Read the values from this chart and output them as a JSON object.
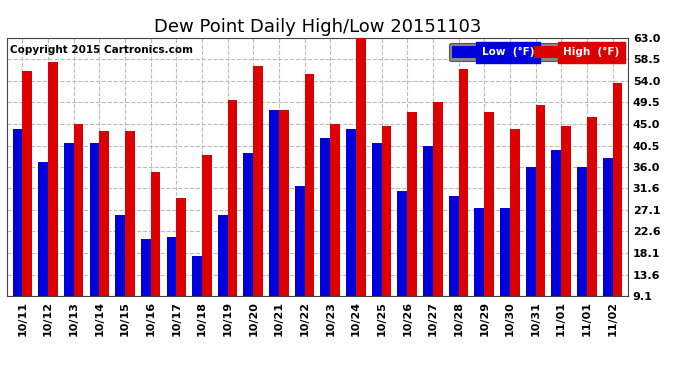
{
  "title": "Dew Point Daily High/Low 20151103",
  "copyright": "Copyright 2015 Cartronics.com",
  "categories": [
    "10/11",
    "10/12",
    "10/13",
    "10/14",
    "10/15",
    "10/16",
    "10/17",
    "10/18",
    "10/19",
    "10/20",
    "10/21",
    "10/22",
    "10/23",
    "10/24",
    "10/25",
    "10/26",
    "10/27",
    "10/28",
    "10/29",
    "10/30",
    "10/31",
    "11/01",
    "11/01",
    "11/02"
  ],
  "low_values": [
    44.0,
    37.0,
    41.0,
    41.0,
    26.0,
    21.0,
    21.5,
    17.5,
    26.0,
    39.0,
    48.0,
    32.0,
    42.0,
    44.0,
    41.0,
    31.0,
    40.5,
    30.0,
    27.5,
    27.5,
    36.0,
    39.5,
    36.0,
    38.0
  ],
  "high_values": [
    56.0,
    58.0,
    45.0,
    43.5,
    43.5,
    35.0,
    29.5,
    38.5,
    50.0,
    57.0,
    48.0,
    55.5,
    45.0,
    64.0,
    44.5,
    47.5,
    49.5,
    56.5,
    47.5,
    44.0,
    49.0,
    44.5,
    46.5,
    53.5
  ],
  "low_color": "#0000dd",
  "high_color": "#dd0000",
  "bg_color": "#ffffff",
  "ylim_min": 9.1,
  "ylim_max": 63.0,
  "yticks": [
    9.1,
    13.6,
    18.1,
    22.6,
    27.1,
    31.6,
    36.0,
    40.5,
    45.0,
    49.5,
    54.0,
    58.5,
    63.0
  ],
  "grid_color": "#bbbbbb",
  "title_fontsize": 13,
  "tick_fontsize": 8,
  "copyright_fontsize": 7.5,
  "legend_low_label": "Low  (°F)",
  "legend_high_label": "High  (°F)"
}
